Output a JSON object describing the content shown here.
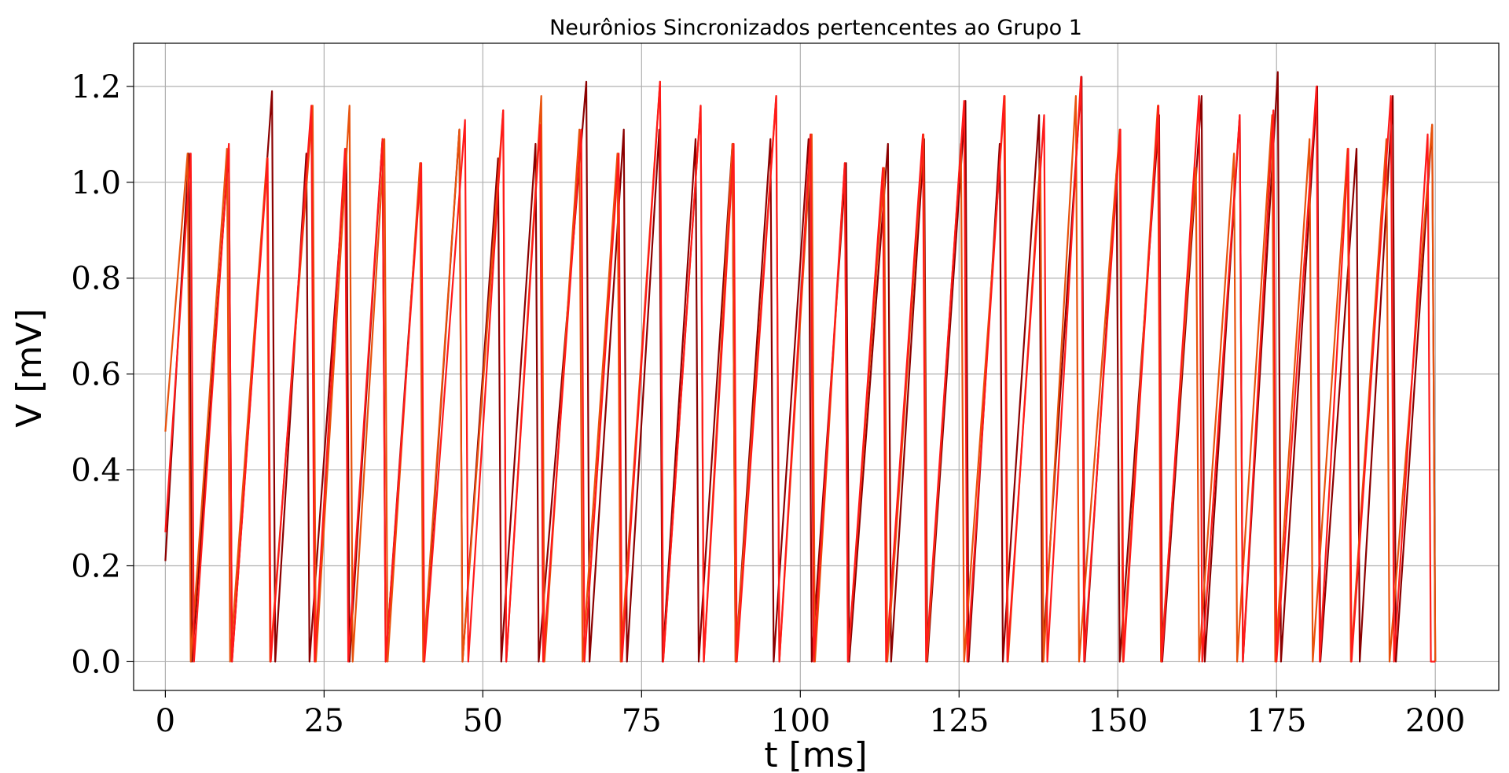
{
  "chart_data": {
    "type": "line",
    "title": "Neurônios Sincronizados pertencentes ao Grupo 1",
    "xlabel": "t [ms]",
    "ylabel": "V [mV]",
    "xlim": [
      -5,
      210
    ],
    "ylim": [
      -0.06,
      1.29
    ],
    "xticks": [
      0,
      25,
      50,
      75,
      100,
      125,
      150,
      175,
      200
    ],
    "xtick_labels": [
      "0",
      "25",
      "50",
      "75",
      "100",
      "125",
      "150",
      "175",
      "200"
    ],
    "yticks": [
      0.0,
      0.2,
      0.4,
      0.6,
      0.8,
      1.0,
      1.2
    ],
    "ytick_labels": [
      "0.0",
      "0.2",
      "0.4",
      "0.6",
      "0.8",
      "1.0",
      "1.2"
    ],
    "grid": true,
    "series": [
      {
        "color": "#8b0000",
        "start": 0.21,
        "spikes": [
          [
            3.7,
            1.06
          ],
          [
            10,
            1.07
          ],
          [
            16.8,
            1.19
          ],
          [
            22.2,
            1.06
          ],
          [
            28.5,
            1.07
          ],
          [
            34.2,
            1.09
          ],
          [
            40.2,
            1.04
          ],
          [
            46.3,
            1.11
          ],
          [
            52.4,
            1.05
          ],
          [
            58.3,
            1.08
          ],
          [
            66.3,
            1.21
          ],
          [
            72.2,
            1.11
          ],
          [
            77.8,
            1.11
          ],
          [
            83.5,
            1.09
          ],
          [
            89.3,
            1.08
          ],
          [
            95.3,
            1.09
          ],
          [
            101.3,
            1.09
          ],
          [
            107.2,
            1.04
          ],
          [
            113.8,
            1.08
          ],
          [
            119.5,
            1.09
          ],
          [
            126,
            1.17
          ],
          [
            131.4,
            1.08
          ],
          [
            137.6,
            1.14
          ],
          [
            144.3,
            1.22
          ],
          [
            149.8,
            1.02
          ],
          [
            156.5,
            1.14
          ],
          [
            163.2,
            1.18
          ],
          [
            169.2,
            1.14
          ],
          [
            175.2,
            1.23
          ],
          [
            181.4,
            1.2
          ],
          [
            187.6,
            1.07
          ],
          [
            193.3,
            1.18
          ],
          [
            199.5,
            1.12
          ]
        ],
        "end": 0.36
      },
      {
        "color": "#e8520c",
        "start": 0.48,
        "spikes": [
          [
            3.5,
            1.06
          ],
          [
            9.7,
            1.07
          ],
          [
            16,
            1.05
          ],
          [
            23.2,
            1.16
          ],
          [
            29,
            1.16
          ],
          [
            34.5,
            1.09
          ],
          [
            40.1,
            1.04
          ],
          [
            46.3,
            1.11
          ],
          [
            53.2,
            1.15
          ],
          [
            59.2,
            1.18
          ],
          [
            65.2,
            1.11
          ],
          [
            71.2,
            1.06
          ],
          [
            77.9,
            1.21
          ],
          [
            84.3,
            1.16
          ],
          [
            89.3,
            1.08
          ],
          [
            96.2,
            1.18
          ],
          [
            101.8,
            1.1
          ],
          [
            107,
            1.04
          ],
          [
            113.2,
            1.03
          ],
          [
            119.4,
            1.1
          ],
          [
            125.3,
            1.08
          ],
          [
            132.2,
            1.18
          ],
          [
            137.8,
            1.05
          ],
          [
            143.4,
            1.18
          ],
          [
            150.3,
            1.11
          ],
          [
            156.3,
            1.16
          ],
          [
            162.3,
            1.03
          ],
          [
            168.3,
            1.06
          ],
          [
            174.3,
            1.14
          ],
          [
            180.2,
            1.09
          ],
          [
            186.2,
            1.07
          ],
          [
            192.3,
            1.09
          ],
          [
            199.5,
            1.12
          ]
        ],
        "end": 0.36
      },
      {
        "color": "#ff1a1a",
        "start": 0.27,
        "spikes": [
          [
            4,
            1.06
          ],
          [
            10,
            1.08
          ],
          [
            16.1,
            1.05
          ],
          [
            23,
            1.16
          ],
          [
            28.3,
            1.07
          ],
          [
            34.2,
            1.09
          ],
          [
            40.3,
            1.04
          ],
          [
            47.2,
            1.13
          ],
          [
            53.2,
            1.15
          ],
          [
            59,
            1.12
          ],
          [
            65.5,
            1.11
          ],
          [
            71.4,
            1.06
          ],
          [
            77.9,
            1.21
          ],
          [
            84.3,
            1.16
          ],
          [
            89.5,
            1.08
          ],
          [
            96.2,
            1.18
          ],
          [
            101.6,
            1.1
          ],
          [
            107,
            1.04
          ],
          [
            113,
            1.03
          ],
          [
            119.3,
            1.1
          ],
          [
            125.8,
            1.17
          ],
          [
            132.1,
            1.18
          ],
          [
            138.4,
            1.14
          ],
          [
            144.2,
            1.22
          ],
          [
            150.4,
            1.11
          ],
          [
            156.4,
            1.16
          ],
          [
            162.8,
            1.18
          ],
          [
            169.2,
            1.14
          ],
          [
            174.5,
            1.15
          ],
          [
            181.3,
            1.2
          ],
          [
            186.3,
            1.07
          ],
          [
            193,
            1.18
          ],
          [
            198.8,
            1.1
          ]
        ],
        "end": 0.0
      }
    ]
  }
}
